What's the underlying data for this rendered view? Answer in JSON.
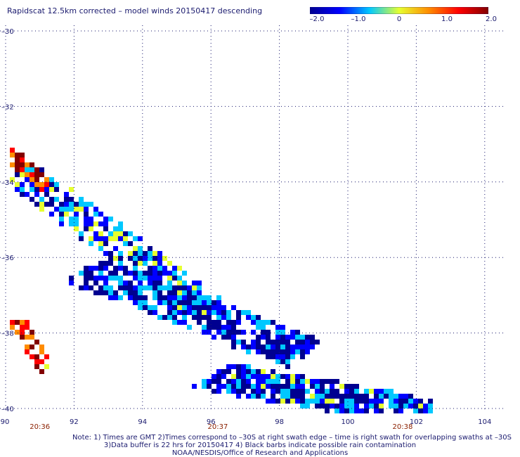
{
  "title": "Rapidscat 12.5km corrected – model winds 20150417 descending",
  "colorbar": {
    "ticks": [
      "–2.0",
      "–1.0",
      "0",
      "1.0",
      "2.0"
    ],
    "range": [
      -2.0,
      2.0
    ],
    "colors": [
      "#000090",
      "#0000ff",
      "#00c8ff",
      "#e6ff30",
      "#ff8c00",
      "#ff0000",
      "#820000"
    ]
  },
  "axes": {
    "lon_ticks": [
      "90",
      "92",
      "94",
      "96",
      "98",
      "100",
      "102",
      "104"
    ],
    "lat_ticks": [
      "–30",
      "–32",
      "–34",
      "–36",
      "–38",
      "–40"
    ],
    "grid": true
  },
  "times": [
    {
      "label": "20:36",
      "lon": 91.0
    },
    {
      "label": "20:37",
      "lon": 96.2
    },
    {
      "label": "20:38",
      "lon": 101.6
    }
  ],
  "notes": [
    "Note: 1) Times are GMT 2)Times correspond to –30S at right swath edge – time is right swath for overlapping swaths at –30S",
    "3)Data buffer is 22 hrs for 20150417 4) Black barbs indicate possible rain contamination",
    "NOAA/NESDIS/Office of Research and Applications"
  ]
}
